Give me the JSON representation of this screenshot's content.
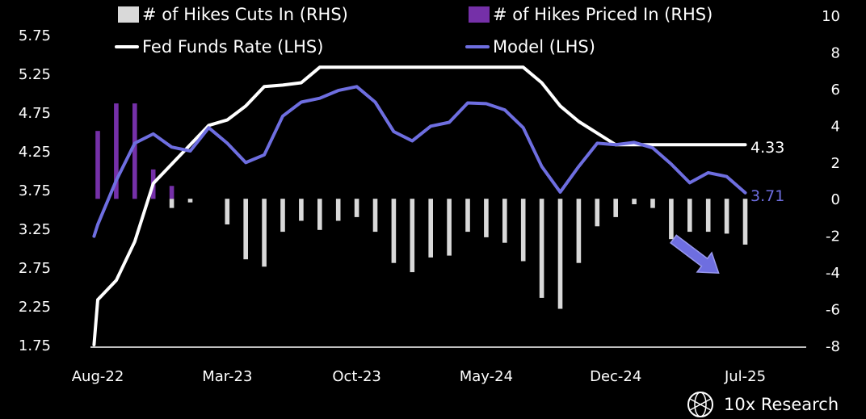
{
  "chart_data": {
    "type": "line",
    "x_tick_labels": [
      "Aug-22",
      "Mar-23",
      "Oct-23",
      "May-24",
      "Dec-24",
      "Jul-25"
    ],
    "left_axis": {
      "ticks": [
        "5.75",
        "5.25",
        "4.75",
        "4.25",
        "3.75",
        "3.25",
        "2.75",
        "2.25",
        "1.75"
      ],
      "ylim": [
        1.75,
        5.75
      ]
    },
    "right_axis": {
      "ticks": [
        "10",
        "8",
        "6",
        "4",
        "2",
        "0",
        "-2",
        "-4",
        "-6",
        "-8"
      ],
      "ylim": [
        -8,
        10
      ]
    },
    "series": [
      {
        "name": "# of Hikes Cuts In (RHS)",
        "type": "bar",
        "axis": "right",
        "color": "#d9d9d9",
        "points": [
          [
            4,
            -0.5
          ],
          [
            5,
            -0.2
          ],
          [
            7,
            -1.4
          ],
          [
            8,
            -3.3
          ],
          [
            9,
            -3.7
          ],
          [
            10,
            -1.8
          ],
          [
            11,
            -1.2
          ],
          [
            12,
            -1.7
          ],
          [
            13,
            -1.2
          ],
          [
            14,
            -1.0
          ],
          [
            15,
            -1.8
          ],
          [
            16,
            -3.5
          ],
          [
            17,
            -4.0
          ],
          [
            18,
            -3.2
          ],
          [
            19,
            -3.1
          ],
          [
            20,
            -1.8
          ],
          [
            21,
            -2.1
          ],
          [
            22,
            -2.4
          ],
          [
            23,
            -3.4
          ],
          [
            24,
            -5.4
          ],
          [
            25,
            -6.0
          ],
          [
            26,
            -3.5
          ],
          [
            27,
            -1.5
          ],
          [
            28,
            -1.0
          ],
          [
            29,
            -0.3
          ],
          [
            30,
            -0.5
          ],
          [
            31,
            -2.2
          ],
          [
            32,
            -1.8
          ],
          [
            33,
            -1.8
          ],
          [
            34,
            -1.9
          ],
          [
            35,
            -2.5
          ]
        ]
      },
      {
        "name": "# of Hikes Priced In (RHS)",
        "type": "bar",
        "axis": "right",
        "color": "#7530a8",
        "points": [
          [
            0,
            3.7
          ],
          [
            1,
            5.2
          ],
          [
            2,
            5.2
          ],
          [
            3,
            1.6
          ],
          [
            4,
            0.7
          ]
        ]
      },
      {
        "name": "Fed Funds Rate (LHS)",
        "type": "line",
        "axis": "left",
        "color": "#ffffff",
        "x": [
          -0.2,
          0,
          1,
          2,
          3,
          4,
          5,
          6,
          7,
          8,
          9,
          10,
          11,
          12,
          13,
          14,
          15,
          16,
          17,
          18,
          19,
          20,
          21,
          22,
          23,
          24,
          25,
          26,
          27,
          28,
          29,
          30,
          31,
          32,
          33,
          34,
          35
        ],
        "values": [
          1.75,
          2.33,
          2.58,
          3.08,
          3.83,
          4.08,
          4.33,
          4.58,
          4.65,
          4.83,
          5.08,
          5.1,
          5.13,
          5.33,
          5.33,
          5.33,
          5.33,
          5.33,
          5.33,
          5.33,
          5.33,
          5.33,
          5.33,
          5.33,
          5.33,
          5.13,
          4.83,
          4.63,
          4.48,
          4.33,
          4.33,
          4.33,
          4.33,
          4.33,
          4.33,
          4.33,
          4.33
        ]
      },
      {
        "name": "Model (LHS)",
        "type": "line",
        "axis": "left",
        "color": "#6e6ee0",
        "x": [
          -0.2,
          0,
          1,
          2,
          3,
          4,
          5,
          6,
          7,
          8,
          9,
          10,
          11,
          12,
          13,
          14,
          15,
          16,
          17,
          18,
          19,
          20,
          21,
          22,
          23,
          24,
          25,
          26,
          27,
          28,
          29,
          30,
          31,
          32,
          33,
          34,
          35
        ],
        "values": [
          3.15,
          3.3,
          3.87,
          4.35,
          4.47,
          4.3,
          4.25,
          4.55,
          4.35,
          4.1,
          4.2,
          4.7,
          4.88,
          4.93,
          5.03,
          5.08,
          4.88,
          4.5,
          4.38,
          4.57,
          4.62,
          4.87,
          4.86,
          4.78,
          4.55,
          4.05,
          3.72,
          4.05,
          4.35,
          4.33,
          4.36,
          4.29,
          4.08,
          3.84,
          3.97,
          3.92,
          3.71
        ]
      }
    ],
    "end_labels": {
      "fed_funds": "4.33",
      "model": "3.71"
    },
    "annotation": "downward-arrow",
    "grid": false
  },
  "legend": {
    "cuts": "# of Hikes Cuts In (RHS)",
    "priced": "# of Hikes Priced In (RHS)",
    "fed": "Fed Funds Rate (LHS)",
    "model": "Model (LHS)"
  },
  "brand": {
    "name": "10x Research",
    "icon": "globe-logo-icon"
  }
}
